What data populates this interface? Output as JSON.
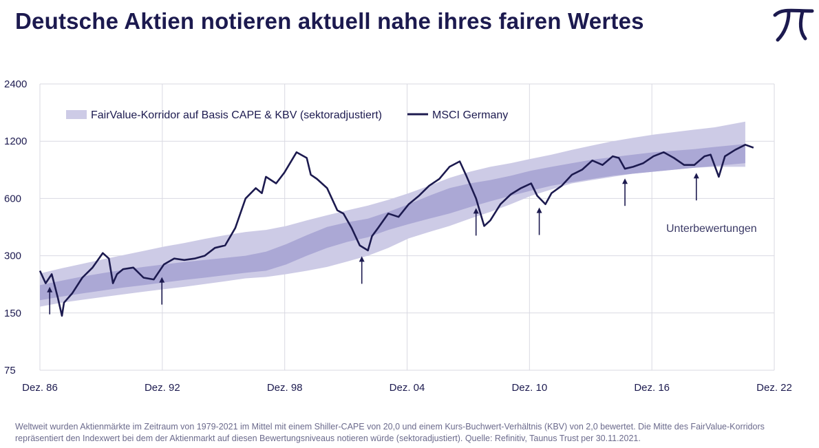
{
  "header": {
    "title": "Deutsche Aktien notieren aktuell nahe ihres fairen Wertes",
    "logo_icon": "pi-icon"
  },
  "footnote": "Weltweit wurden Aktienmärkte im Zeitraum von 1979-2021 im Mittel mit einem Shiller-CAPE von 20,0 und einem Kurs-Buchwert-Verhältnis (KBV) von 2,0 bewertet. Die Mitte des FairValue-Korridors repräsentiert den Indexwert bei dem der Aktienmarkt auf diesen Bewertungsniveaus notieren würde (sektoradjustiert). Quelle: Refinitiv, Taunus Trust per 30.11.2021.",
  "colors": {
    "line": "#1c1a4f",
    "band_outer": "#cdcbe6",
    "band_inner": "#aba8d5",
    "grid": "#d9d9e2"
  },
  "chart_data": {
    "type": "line",
    "y_scale": "log",
    "ylim": [
      75,
      2400
    ],
    "y_ticks": [
      75,
      150,
      300,
      600,
      1200,
      2400
    ],
    "y_tick_labels": [
      "75",
      "150",
      "300",
      "600",
      "1200",
      "2400"
    ],
    "xlim": [
      1986.92,
      2022.92
    ],
    "x_ticks": [
      1986.92,
      1992.92,
      1998.92,
      2004.92,
      2010.92,
      2016.92,
      2022.92
    ],
    "x_tick_labels": [
      "Dez. 86",
      "Dez. 92",
      "Dez. 98",
      "Dez. 04",
      "Dez. 10",
      "Dez. 16",
      "Dez. 22"
    ],
    "grid": true,
    "legend": {
      "position": "top-left",
      "entries": [
        {
          "label": "FairValue-Korridor auf Basis CAPE & KBV (sektoradjustiert)",
          "kind": "band"
        },
        {
          "label": "MSCI Germany",
          "kind": "line"
        }
      ]
    },
    "band": {
      "name": "FairValue-Korridor auf Basis CAPE & KBV (sektoradjustiert)",
      "x": [
        1986.92,
        1988,
        1989,
        1990,
        1991,
        1992,
        1993,
        1994,
        1995,
        1996,
        1997,
        1998,
        1999,
        2000,
        2001,
        2002,
        2003,
        2004,
        2005,
        2006,
        2007,
        2008,
        2009,
        2010,
        2011,
        2012,
        2013,
        2014,
        2015,
        2016,
        2017,
        2018,
        2019,
        2020,
        2021.5
      ],
      "outer_upper": [
        242,
        258,
        272,
        287,
        302,
        318,
        335,
        350,
        368,
        385,
        400,
        410,
        430,
        460,
        490,
        520,
        550,
        590,
        640,
        700,
        770,
        830,
        880,
        920,
        970,
        1020,
        1080,
        1140,
        1200,
        1250,
        1300,
        1340,
        1380,
        1420,
        1520
      ],
      "inner_upper": [
        210,
        222,
        233,
        243,
        253,
        262,
        270,
        278,
        285,
        292,
        300,
        315,
        345,
        385,
        425,
        450,
        470,
        510,
        560,
        620,
        680,
        720,
        750,
        790,
        840,
        880,
        920,
        960,
        990,
        1020,
        1050,
        1070,
        1090,
        1120,
        1160
      ],
      "inner_lower": [
        175,
        183,
        190,
        197,
        204,
        210,
        217,
        224,
        230,
        237,
        244,
        250,
        270,
        300,
        330,
        355,
        375,
        410,
        440,
        470,
        500,
        540,
        580,
        620,
        660,
        700,
        730,
        760,
        790,
        810,
        830,
        850,
        870,
        890,
        920
      ],
      "outer_lower": [
        162,
        170,
        176,
        182,
        188,
        194,
        200,
        206,
        213,
        220,
        228,
        232,
        240,
        250,
        262,
        280,
        300,
        330,
        370,
        400,
        430,
        470,
        510,
        560,
        620,
        670,
        720,
        750,
        780,
        810,
        830,
        850,
        870,
        880,
        880
      ]
    },
    "series": [
      {
        "name": "MSCI Germany",
        "x": [
          1986.92,
          1987.2,
          1987.5,
          1987.8,
          1988.0,
          1988.1,
          1988.5,
          1989.0,
          1989.5,
          1990.0,
          1990.3,
          1990.5,
          1990.7,
          1991.0,
          1991.5,
          1992.0,
          1992.5,
          1993.0,
          1993.5,
          1994.0,
          1994.5,
          1995.0,
          1995.5,
          1996.0,
          1996.5,
          1997.0,
          1997.5,
          1997.8,
          1998.0,
          1998.5,
          1998.9,
          1999.5,
          2000.0,
          2000.2,
          2000.5,
          2001.0,
          2001.5,
          2001.8,
          2002.2,
          2002.6,
          2003.0,
          2003.2,
          2003.5,
          2004.0,
          2004.5,
          2005.0,
          2005.5,
          2006.0,
          2006.5,
          2007.0,
          2007.5,
          2007.8,
          2008.3,
          2008.7,
          2009.0,
          2009.5,
          2010.0,
          2010.5,
          2011.0,
          2011.3,
          2011.7,
          2012.0,
          2012.5,
          2013.0,
          2013.5,
          2014.0,
          2014.5,
          2015.0,
          2015.3,
          2015.6,
          2016.0,
          2016.5,
          2017.0,
          2017.5,
          2018.0,
          2018.5,
          2019.0,
          2019.5,
          2019.8,
          2020.2,
          2020.5,
          2021.0,
          2021.5,
          2021.9
        ],
        "y": [
          250,
          215,
          240,
          180,
          145,
          170,
          190,
          230,
          260,
          310,
          290,
          215,
          240,
          255,
          260,
          230,
          225,
          270,
          290,
          285,
          290,
          300,
          330,
          340,
          420,
          600,
          680,
          640,
          780,
          720,
          820,
          1050,
          980,
          800,
          760,
          680,
          520,
          500,
          420,
          340,
          320,
          380,
          420,
          500,
          480,
          560,
          620,
          700,
          760,
          880,
          940,
          800,
          600,
          430,
          460,
          560,
          630,
          680,
          720,
          620,
          560,
          640,
          700,
          800,
          850,
          950,
          900,
          1000,
          980,
          860,
          880,
          920,
          1000,
          1050,
          980,
          900,
          900,
          1000,
          1020,
          780,
          1000,
          1080,
          1150,
          1110
        ]
      }
    ],
    "arrows": [
      1987.4,
      1992.9,
      2002.7,
      2008.3,
      2011.4,
      2015.6,
      2019.1
    ],
    "annotations": [
      {
        "text": "Unterbewertungen"
      }
    ]
  }
}
